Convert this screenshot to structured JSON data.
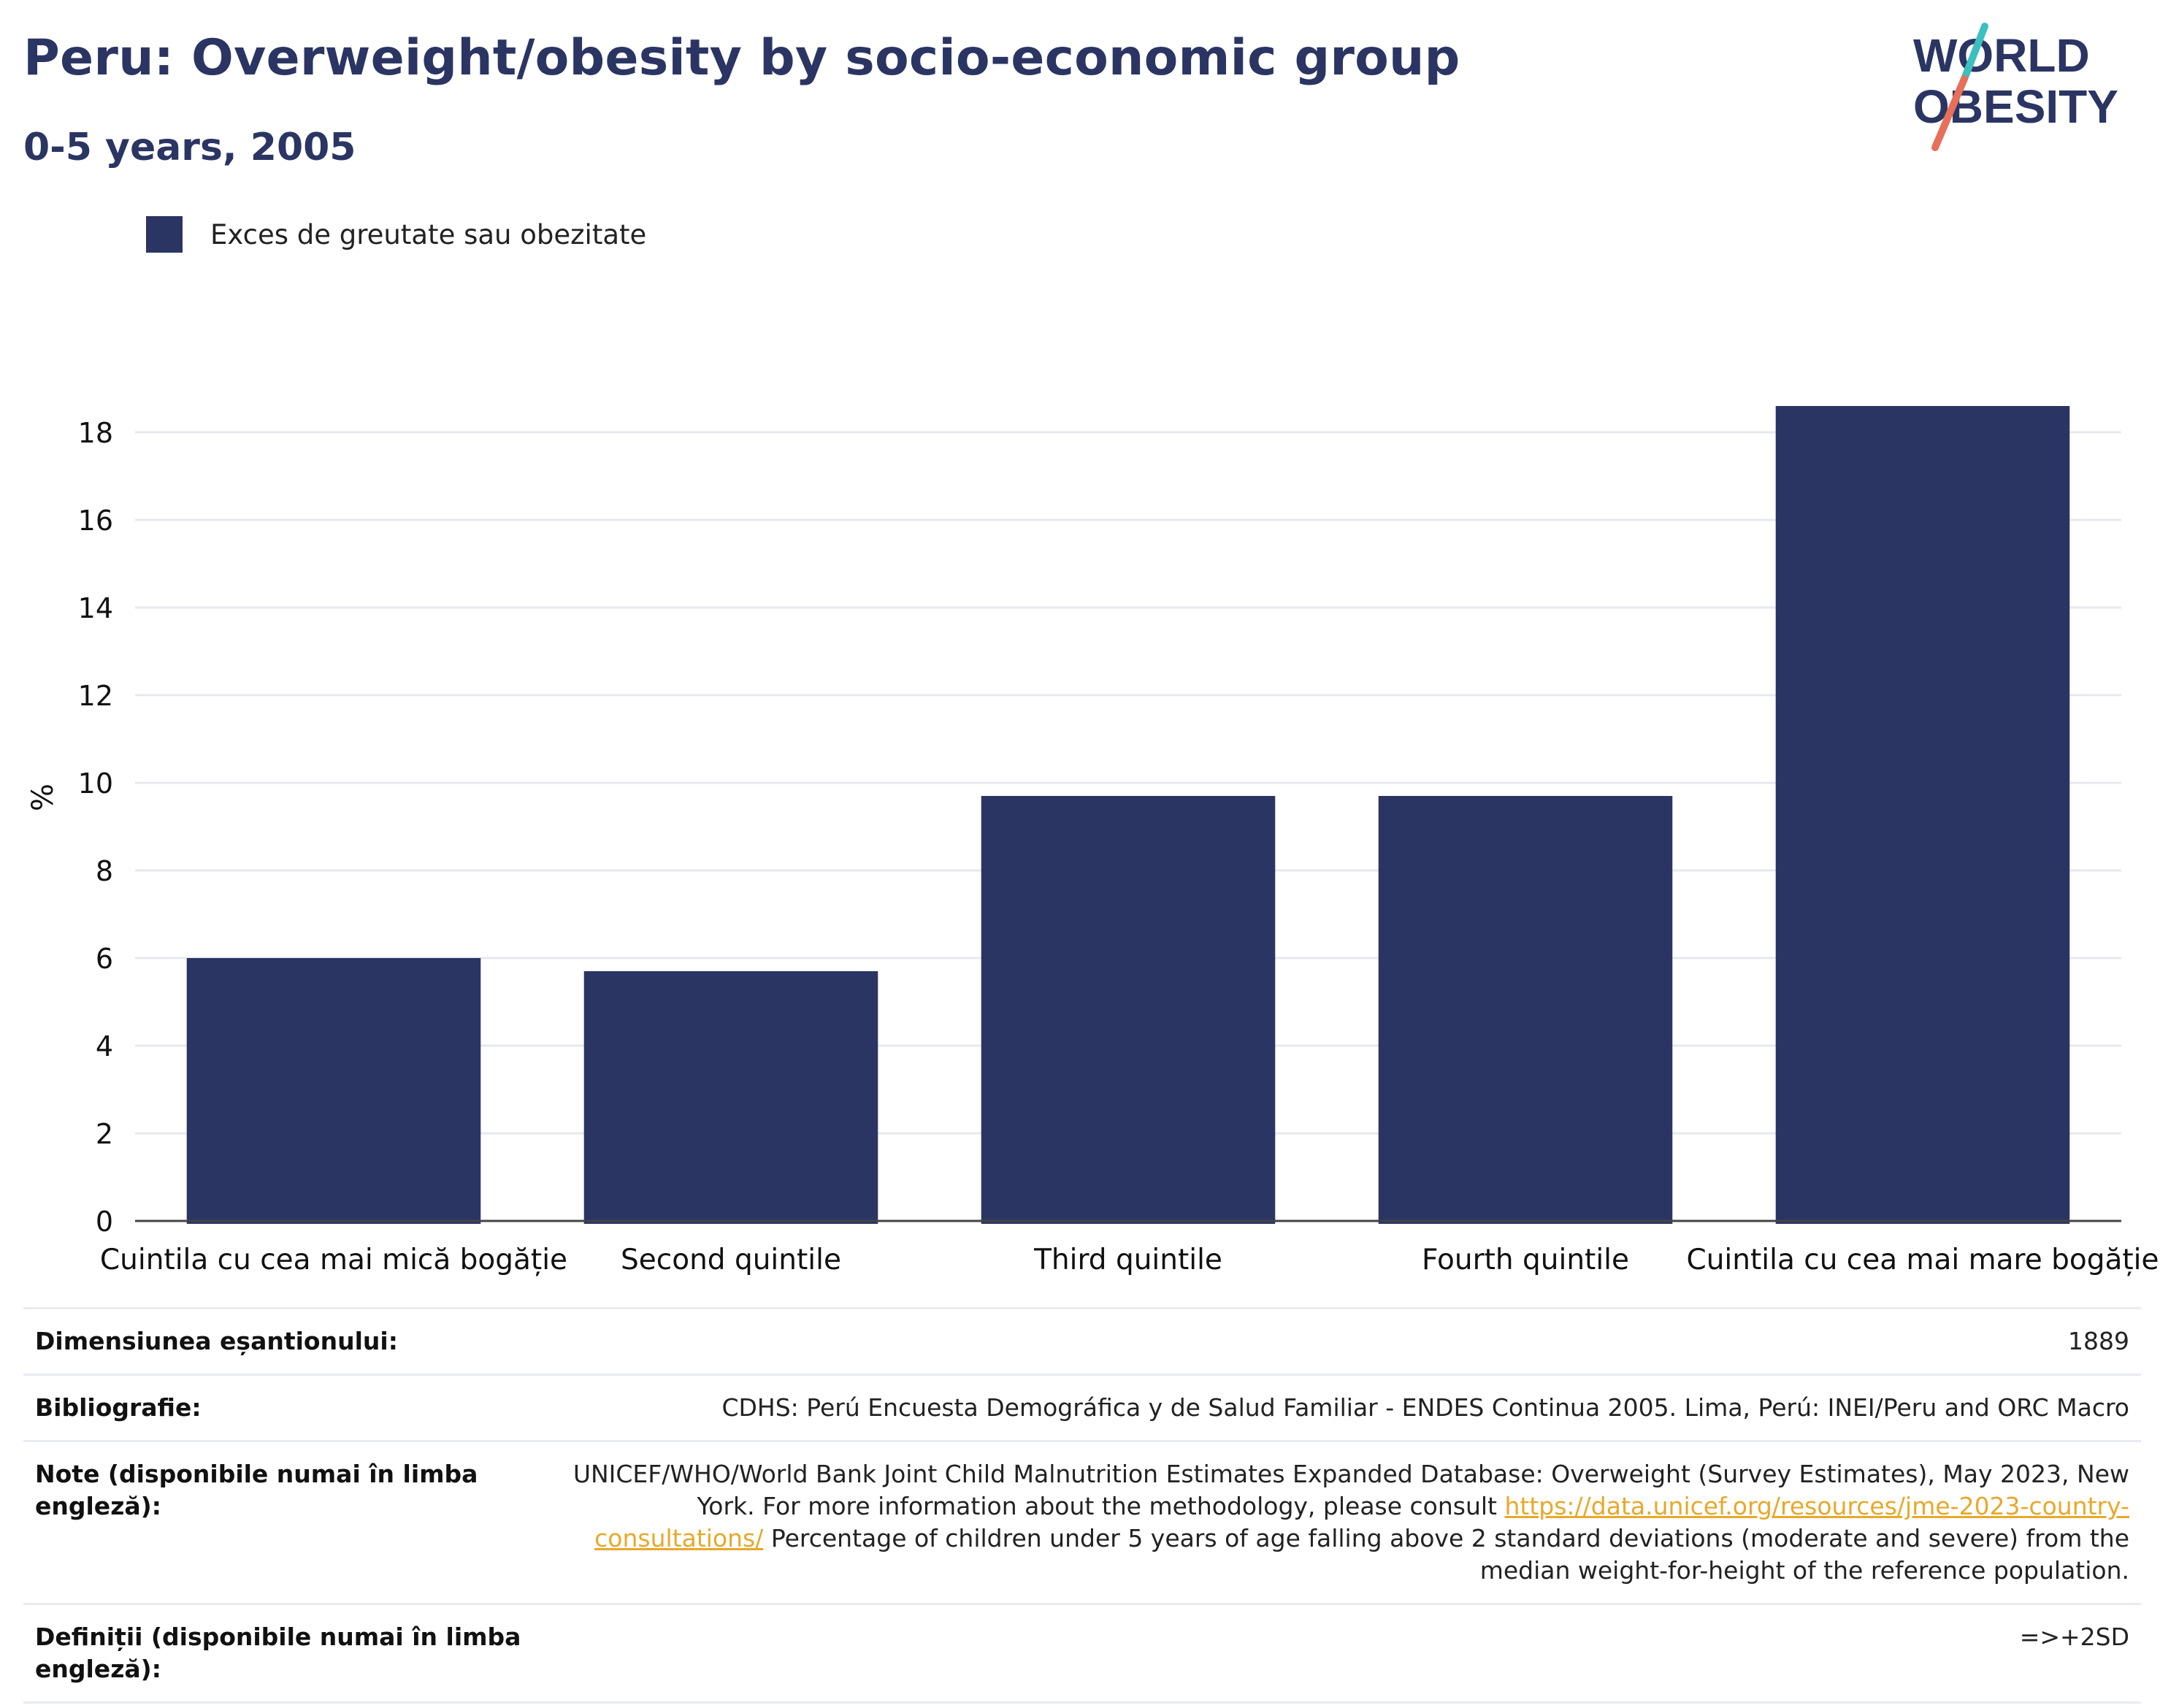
{
  "header": {
    "title": "Peru: Overweight/obesity by socio-economic group",
    "subtitle": "0-5 years, 2005"
  },
  "logo": {
    "line1": "WORLD",
    "line2": "OBESITY",
    "slash_colors": [
      "#3cbfbf",
      "#e8705a"
    ]
  },
  "legend": {
    "label": "Exces de greutate sau obezitate"
  },
  "colors": {
    "bar": "#2b3563",
    "grid": "#e6e8ee",
    "axis": "#444444",
    "link": "#e8a82a"
  },
  "chart_data": {
    "type": "bar",
    "title": "Peru: Overweight/obesity by socio-economic group",
    "subtitle": "0-5 years, 2005",
    "ylabel": "%",
    "xlabel": "",
    "ylim": [
      0,
      19
    ],
    "yticks": [
      0,
      2,
      4,
      6,
      8,
      10,
      12,
      14,
      16,
      18
    ],
    "grid": true,
    "legend_position": "top-left",
    "categories": [
      "Cuintila cu cea mai mică bogăție",
      "Second quintile",
      "Third quintile",
      "Fourth quintile",
      "Cuintila cu cea mai mare bogăție"
    ],
    "series": [
      {
        "name": "Exces de greutate sau obezitate",
        "values": [
          6.0,
          5.7,
          9.7,
          9.7,
          18.6
        ]
      }
    ]
  },
  "footer": {
    "rows": [
      {
        "label": "Dimensiunea eșantionului:",
        "value": "1889"
      },
      {
        "label": "Bibliografie:",
        "value": "CDHS: Perú Encuesta Demográfica y de Salud Familiar - ENDES Continua 2005. Lima, Perú: INEI/Peru and ORC Macro"
      },
      {
        "label": "Note (disponibile numai în limba engleză):",
        "value_part1": "UNICEF/WHO/World Bank Joint Child Malnutrition Estimates Expanded Database: Overweight (Survey Estimates), May 2023, New York. For more information about the methodology, please consult",
        "link": "https://data.unicef.org/resources/jme-2023-country-consultations/",
        "value_part2": "Percentage of children under 5 years of age falling above 2 standard deviations (moderate and severe) from the median weight-for-height of the reference population."
      },
      {
        "label": "Definiții (disponibile numai în limba engleză):",
        "value": "=>+2SD"
      }
    ]
  }
}
